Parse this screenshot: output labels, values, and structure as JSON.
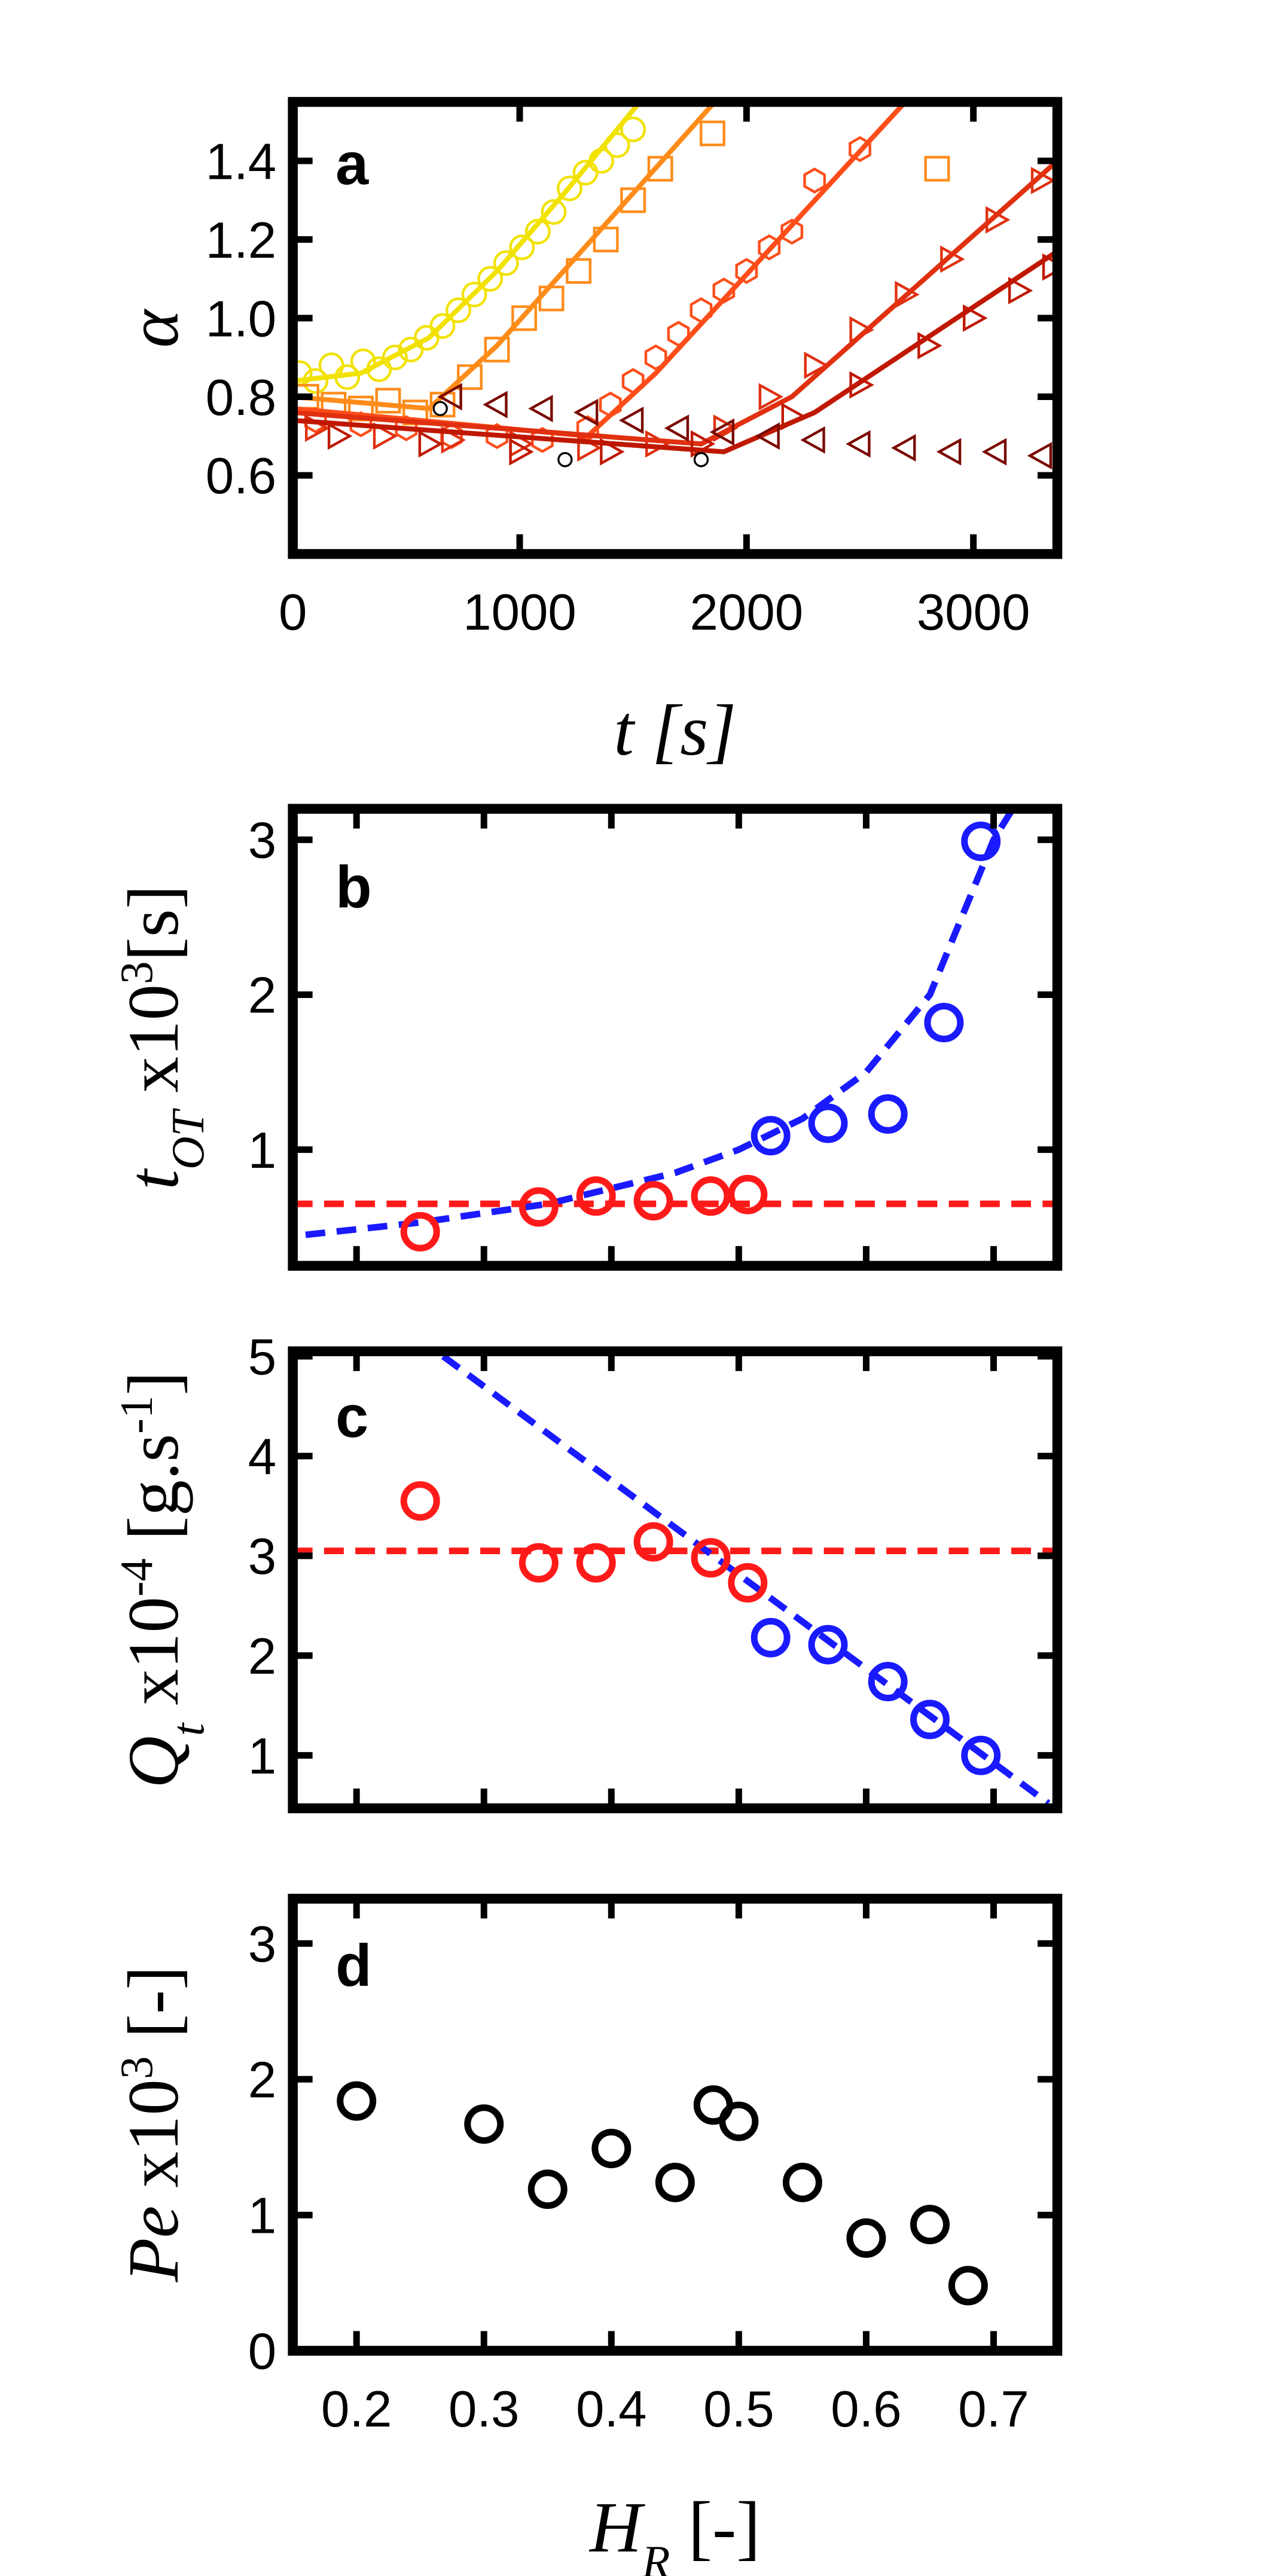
{
  "chart_data": [
    {
      "type": "scatter",
      "letter": "a",
      "ylabel": {
        "main": "α"
      },
      "xlabel": {
        "main": "t [s]"
      },
      "xlim": [
        0,
        3370
      ],
      "xticks": [
        0,
        1000,
        2000,
        3000
      ],
      "ylim": [
        0.4,
        1.55
      ],
      "yticks": [
        0.6,
        0.8,
        {
          "value": 1,
          "label": "1.0"
        },
        1.2,
        1.4
      ],
      "series": [
        {
          "style": "markers",
          "marker": "circle",
          "color": "#f2e200",
          "x": [
            30,
            100,
            170,
            240,
            310,
            380,
            450,
            520,
            590,
            660,
            730,
            800,
            870,
            940,
            1010,
            1080,
            1150,
            1220,
            1290,
            1360,
            1430,
            1500
          ],
          "values": [
            0.86,
            0.84,
            0.88,
            0.85,
            0.89,
            0.87,
            0.9,
            0.92,
            0.95,
            0.98,
            1.02,
            1.06,
            1.1,
            1.14,
            1.18,
            1.22,
            1.27,
            1.33,
            1.37,
            1.4,
            1.44,
            1.48
          ]
        },
        {
          "style": "line",
          "color": "#f2e200",
          "x": [
            0,
            300,
            600,
            900,
            1200,
            1530
          ],
          "values": [
            0.84,
            0.86,
            0.95,
            1.12,
            1.32,
            1.55
          ]
        },
        {
          "style": "markers",
          "marker": "square",
          "color": "#ff8c1a",
          "x": [
            60,
            180,
            300,
            420,
            540,
            660,
            780,
            900,
            1020,
            1140,
            1260,
            1380,
            1500,
            1620,
            1850,
            2840
          ],
          "values": [
            0.8,
            0.78,
            0.77,
            0.79,
            0.76,
            0.78,
            0.85,
            0.92,
            1.0,
            1.05,
            1.12,
            1.2,
            1.3,
            1.38,
            1.47,
            1.38
          ]
        },
        {
          "style": "line",
          "color": "#ff8c1a",
          "x": [
            0,
            600,
            900,
            1860
          ],
          "values": [
            0.8,
            0.77,
            0.93,
            1.55
          ]
        },
        {
          "style": "markers",
          "marker": "hexagon",
          "color": "#ff4d1a",
          "x": [
            100,
            300,
            500,
            700,
            900,
            1100,
            1300,
            1400,
            1500,
            1600,
            1700,
            1800,
            1900,
            2000,
            2100,
            2200,
            2300,
            2500
          ],
          "values": [
            0.74,
            0.73,
            0.72,
            0.7,
            0.7,
            0.69,
            0.72,
            0.78,
            0.84,
            0.9,
            0.96,
            1.02,
            1.07,
            1.12,
            1.18,
            1.22,
            1.35,
            1.43
          ]
        },
        {
          "style": "line",
          "color": "#ff4d1a",
          "x": [
            0,
            1300,
            1600,
            2700
          ],
          "values": [
            0.77,
            0.7,
            0.86,
            1.55
          ]
        },
        {
          "style": "markers",
          "marker": "tri-right",
          "color": "#e03010",
          "x": [
            100,
            400,
            700,
            1000,
            1300,
            1600,
            1900,
            2100,
            2300,
            2500,
            2700,
            2900,
            3100,
            3300
          ],
          "values": [
            0.72,
            0.7,
            0.69,
            0.68,
            0.67,
            0.68,
            0.72,
            0.8,
            0.88,
            0.97,
            1.06,
            1.15,
            1.25,
            1.35
          ]
        },
        {
          "style": "line",
          "color": "#e03010",
          "x": [
            0,
            1800,
            2200,
            3370
          ],
          "values": [
            0.76,
            0.68,
            0.8,
            1.4
          ]
        },
        {
          "style": "markers",
          "marker": "tri-right",
          "color": "#c01800",
          "x": [
            200,
            600,
            1000,
            1400,
            1800,
            2200,
            2500,
            2800,
            3000,
            3200,
            3350
          ],
          "values": [
            0.7,
            0.68,
            0.66,
            0.66,
            0.68,
            0.75,
            0.83,
            0.93,
            1.0,
            1.07,
            1.13
          ]
        },
        {
          "style": "line",
          "color": "#c01800",
          "x": [
            0,
            1900,
            2300,
            3370
          ],
          "values": [
            0.74,
            0.66,
            0.76,
            1.17
          ]
        },
        {
          "style": "markers",
          "marker": "tri-left",
          "color": "#7a0a00",
          "x": [
            700,
            900,
            1100,
            1300,
            1500,
            1700,
            1900,
            2100,
            2300,
            2500,
            2700,
            2900,
            3100,
            3300
          ],
          "values": [
            0.8,
            0.78,
            0.77,
            0.76,
            0.74,
            0.72,
            0.71,
            0.7,
            0.69,
            0.68,
            0.67,
            0.66,
            0.66,
            0.65
          ]
        },
        {
          "style": "markers",
          "marker": "dot",
          "color": "#000000",
          "x": [
            650,
            1200,
            1800
          ],
          "values": [
            0.77,
            0.64,
            0.64
          ]
        }
      ]
    },
    {
      "type": "scatter",
      "letter": "b",
      "ylabel": {
        "main": "t",
        "sub": "OT",
        "mid": " x10",
        "sup": "3",
        "end": "[s]"
      },
      "xlim": [
        0.15,
        0.75
      ],
      "xticks": [
        0.2,
        0.3,
        0.4,
        0.5,
        0.6,
        0.7
      ],
      "xtick_labels": false,
      "ylim": [
        0.25,
        3.2
      ],
      "yticks": [
        1,
        2,
        3
      ],
      "series": [
        {
          "style": "dashed",
          "color": "#ff1a1a",
          "x": [
            0.15,
            0.75
          ],
          "values": [
            0.65,
            0.65
          ]
        },
        {
          "style": "dashed",
          "color": "#1a1aff",
          "x": [
            0.16,
            0.25,
            0.35,
            0.45,
            0.5,
            0.55,
            0.6,
            0.65,
            0.68,
            0.7,
            0.715
          ],
          "values": [
            0.45,
            0.53,
            0.65,
            0.85,
            1.0,
            1.2,
            1.5,
            2.0,
            2.6,
            3.0,
            3.2
          ]
        },
        {
          "style": "markers",
          "marker": "ring",
          "color": "#ff1a1a",
          "x": [
            0.25,
            0.343,
            0.388,
            0.433,
            0.478,
            0.507
          ],
          "values": [
            0.47,
            0.63,
            0.7,
            0.67,
            0.7,
            0.71
          ]
        },
        {
          "style": "markers",
          "marker": "ring",
          "color": "#1a1aff",
          "x": [
            0.525,
            0.57,
            0.617,
            0.661,
            0.69
          ],
          "values": [
            1.09,
            1.17,
            1.23,
            1.82,
            2.99
          ]
        }
      ]
    },
    {
      "type": "scatter",
      "letter": "c",
      "ylabel": {
        "main": "Q",
        "sub": "t",
        "mid": " x10",
        "sup": "-4",
        "end": " [g.s",
        "sup2": "-1",
        "end2": "]"
      },
      "xlim": [
        0.15,
        0.75
      ],
      "xticks": [
        0.2,
        0.3,
        0.4,
        0.5,
        0.6,
        0.7
      ],
      "xtick_labels": false,
      "ylim": [
        0.47,
        5.05
      ],
      "yticks": [
        1,
        2,
        3,
        4,
        5
      ],
      "series": [
        {
          "style": "dashed",
          "color": "#ff1a1a",
          "x": [
            0.15,
            0.75
          ],
          "values": [
            3.05,
            3.05
          ]
        },
        {
          "style": "dashed",
          "color": "#1a1aff",
          "x": [
            0.268,
            0.743
          ],
          "values": [
            5.0,
            0.52
          ]
        },
        {
          "style": "markers",
          "marker": "ring",
          "color": "#ff1a1a",
          "x": [
            0.25,
            0.343,
            0.388,
            0.433,
            0.478,
            0.507
          ],
          "values": [
            3.55,
            2.93,
            2.93,
            3.14,
            2.98,
            2.73
          ]
        },
        {
          "style": "markers",
          "marker": "ring",
          "color": "#1a1aff",
          "x": [
            0.525,
            0.57,
            0.617,
            0.65,
            0.69
          ],
          "values": [
            2.18,
            2.11,
            1.74,
            1.36,
            1.0
          ]
        }
      ]
    },
    {
      "type": "scatter",
      "letter": "d",
      "ylabel": {
        "main": "Pe",
        "mid": " x10",
        "sup": "3",
        "end": " [-]"
      },
      "xlabel": {
        "main": "H",
        "sub": "R",
        "end": " [-]"
      },
      "xlim": [
        0.15,
        0.75
      ],
      "xticks": [
        0.2,
        0.3,
        0.4,
        0.5,
        0.6,
        0.7
      ],
      "ylim": [
        0,
        3.33
      ],
      "yticks": [
        0,
        1,
        2,
        3
      ],
      "series": [
        {
          "style": "markers",
          "marker": "ring",
          "color": "#000000",
          "x": [
            0.2,
            0.3,
            0.35,
            0.4,
            0.45,
            0.48,
            0.5,
            0.55,
            0.6,
            0.65,
            0.68
          ],
          "values": [
            1.84,
            1.67,
            1.19,
            1.49,
            1.24,
            1.81,
            1.69,
            1.24,
            0.83,
            0.93,
            0.48
          ]
        }
      ]
    }
  ]
}
